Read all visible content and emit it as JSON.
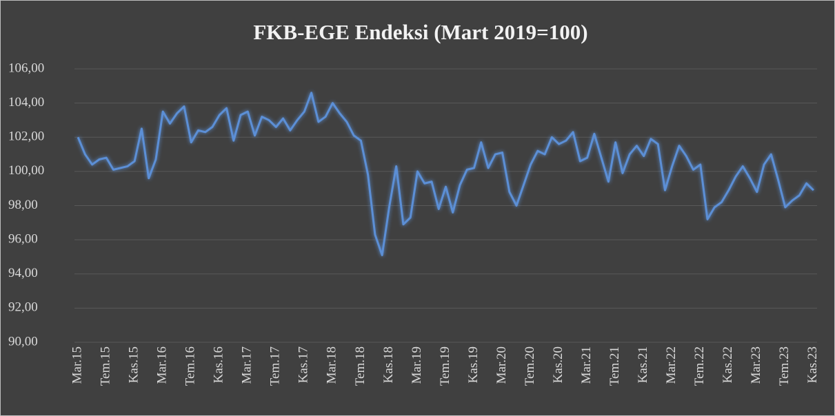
{
  "chart_data": {
    "type": "line",
    "title": "FKB-EGE Endeksi (Mart 2019=100)",
    "categories": [
      "Mar.15",
      null,
      null,
      null,
      "Tem.15",
      null,
      null,
      null,
      "Kas.15",
      null,
      null,
      null,
      "Mar.16",
      null,
      null,
      null,
      "Tem.16",
      null,
      null,
      null,
      "Kas.16",
      null,
      null,
      null,
      "Mar.17",
      null,
      null,
      null,
      "Tem.17",
      null,
      null,
      null,
      "Kas.17",
      null,
      null,
      null,
      "Mar.18",
      null,
      null,
      null,
      "Tem.18",
      null,
      null,
      null,
      "Kas.18",
      null,
      null,
      null,
      "Mar.19",
      null,
      null,
      null,
      "Tem.19",
      null,
      null,
      null,
      "Kas.19",
      null,
      null,
      null,
      "Mar.20",
      null,
      null,
      null,
      "Tem.20",
      null,
      null,
      null,
      "Kas.20",
      null,
      null,
      null,
      "Mar.21",
      null,
      null,
      null,
      "Tem.21",
      null,
      null,
      null,
      "Kas.21",
      null,
      null,
      null,
      "Mar.22",
      null,
      null,
      null,
      "Tem.22",
      null,
      null,
      null,
      "Kas.22",
      null,
      null,
      null,
      "Mar.23",
      null,
      null,
      null,
      "Tem.23",
      null,
      null,
      null,
      "Kas.23"
    ],
    "series": [
      {
        "name": "FKB-EGE Endeksi",
        "color": "#5b8fd6",
        "values": [
          102.0,
          101.0,
          100.4,
          100.7,
          100.8,
          100.1,
          100.2,
          100.3,
          100.6,
          102.5,
          99.6,
          100.7,
          103.5,
          102.8,
          103.4,
          103.8,
          101.7,
          102.4,
          102.3,
          102.6,
          103.3,
          103.7,
          101.8,
          103.3,
          103.5,
          102.1,
          103.2,
          103.0,
          102.6,
          103.1,
          102.4,
          103.0,
          103.5,
          104.6,
          102.9,
          103.2,
          104.0,
          103.4,
          102.9,
          102.1,
          101.8,
          99.8,
          96.3,
          95.1,
          97.9,
          100.3,
          96.9,
          97.3,
          100.0,
          99.3,
          99.4,
          97.8,
          99.1,
          97.6,
          99.2,
          100.1,
          100.2,
          101.7,
          100.2,
          101.0,
          101.1,
          98.8,
          98.0,
          99.2,
          100.4,
          101.2,
          101.0,
          102.0,
          101.6,
          101.8,
          102.3,
          100.6,
          100.8,
          102.2,
          100.8,
          99.4,
          101.7,
          99.9,
          101.0,
          101.5,
          100.9,
          101.9,
          101.6,
          98.9,
          100.3,
          101.5,
          100.9,
          100.1,
          100.4,
          97.2,
          97.9,
          98.2,
          98.9,
          99.7,
          100.3,
          99.6,
          98.8,
          100.4,
          101.0,
          99.5,
          97.9,
          98.3,
          98.6,
          99.3,
          98.9
        ]
      }
    ],
    "ylim": [
      90,
      106
    ],
    "yticks": [
      {
        "value": 90,
        "label": "90,00"
      },
      {
        "value": 92,
        "label": "92,00"
      },
      {
        "value": 94,
        "label": "94,00"
      },
      {
        "value": 96,
        "label": "96,00"
      },
      {
        "value": 98,
        "label": "98,00"
      },
      {
        "value": 100,
        "label": "100,00"
      },
      {
        "value": 102,
        "label": "102,00"
      },
      {
        "value": 104,
        "label": "104,00"
      },
      {
        "value": 106,
        "label": "106,00"
      }
    ],
    "grid": true
  }
}
